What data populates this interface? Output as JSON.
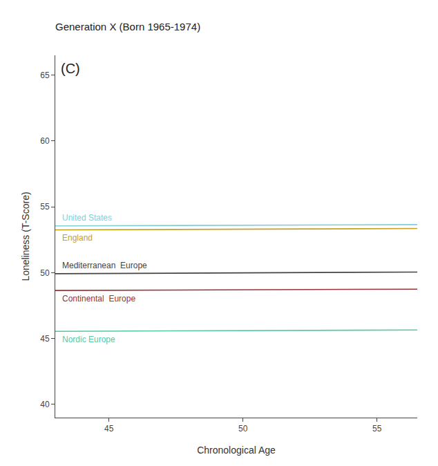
{
  "chart_data": {
    "type": "line",
    "title": "Generation X (Born 1965-1974)",
    "xlabel": "Chronological Age",
    "ylabel": "Loneliness (T-Score)",
    "annotations": [
      {
        "text": "(C)"
      }
    ],
    "x": [
      43.0,
      56.5
    ],
    "series": [
      {
        "name": "United States",
        "color": "#7ecfd8",
        "values": [
          53.55,
          53.65
        ]
      },
      {
        "name": "England",
        "color": "#c8a020",
        "values": [
          53.25,
          53.35
        ]
      },
      {
        "name": "Mediterranean  Europe",
        "color": "#444444",
        "values": [
          49.92,
          50.05
        ]
      },
      {
        "name": "Continental  Europe",
        "color": "#993333",
        "values": [
          48.65,
          48.75
        ]
      },
      {
        "name": "Nordic Europe",
        "color": "#55c8a8",
        "values": [
          45.55,
          45.65
        ]
      }
    ],
    "xlim": [
      43.0,
      56.5
    ],
    "ylim": [
      39.0,
      66.5
    ],
    "xticks": [
      45,
      50,
      55
    ],
    "yticks": [
      40,
      45,
      50,
      55,
      60,
      65
    ],
    "grid": false
  }
}
